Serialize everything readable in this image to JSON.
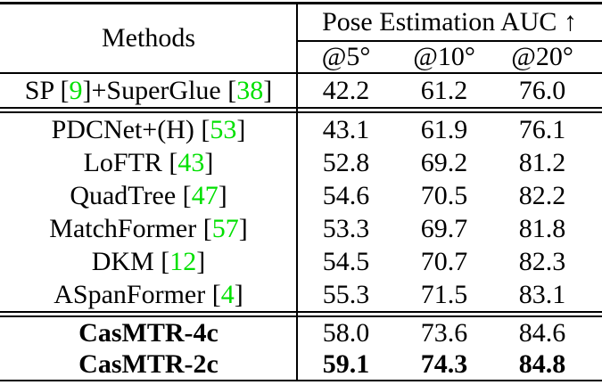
{
  "colors": {
    "text": "#000000",
    "citation": "#00e000",
    "rule": "#000000",
    "background": "#ffffff"
  },
  "table": {
    "title_column": "Methods",
    "group_header": "Pose Estimation AUC ↑",
    "subcolumns": [
      "@5°",
      "@10°",
      "@20°"
    ],
    "row_groups": [
      {
        "rows": [
          {
            "method": [
              {
                "text": "SP [",
                "cite": false
              },
              {
                "text": "9",
                "cite": true
              },
              {
                "text": "]+SuperGlue [",
                "cite": false
              },
              {
                "text": "38",
                "cite": true
              },
              {
                "text": "]",
                "cite": false
              }
            ],
            "values": [
              "42.2",
              "61.2",
              "76.0"
            ],
            "bold_method": false,
            "bold_values": false
          }
        ]
      },
      {
        "rows": [
          {
            "method": [
              {
                "text": "PDCNet+(H) [",
                "cite": false
              },
              {
                "text": "53",
                "cite": true
              },
              {
                "text": "]",
                "cite": false
              }
            ],
            "values": [
              "43.1",
              "61.9",
              "76.1"
            ],
            "bold_method": false,
            "bold_values": false
          },
          {
            "method": [
              {
                "text": "LoFTR [",
                "cite": false
              },
              {
                "text": "43",
                "cite": true
              },
              {
                "text": "]",
                "cite": false
              }
            ],
            "values": [
              "52.8",
              "69.2",
              "81.2"
            ],
            "bold_method": false,
            "bold_values": false
          },
          {
            "method": [
              {
                "text": "QuadTree [",
                "cite": false
              },
              {
                "text": "47",
                "cite": true
              },
              {
                "text": "]",
                "cite": false
              }
            ],
            "values": [
              "54.6",
              "70.5",
              "82.2"
            ],
            "bold_method": false,
            "bold_values": false
          },
          {
            "method": [
              {
                "text": "MatchFormer [",
                "cite": false
              },
              {
                "text": "57",
                "cite": true
              },
              {
                "text": "]",
                "cite": false
              }
            ],
            "values": [
              "53.3",
              "69.7",
              "81.8"
            ],
            "bold_method": false,
            "bold_values": false
          },
          {
            "method": [
              {
                "text": "DKM [",
                "cite": false
              },
              {
                "text": "12",
                "cite": true
              },
              {
                "text": "]",
                "cite": false
              }
            ],
            "values": [
              "54.5",
              "70.7",
              "82.3"
            ],
            "bold_method": false,
            "bold_values": false
          },
          {
            "method": [
              {
                "text": "ASpanFormer [",
                "cite": false
              },
              {
                "text": "4",
                "cite": true
              },
              {
                "text": "]",
                "cite": false
              }
            ],
            "values": [
              "55.3",
              "71.5",
              "83.1"
            ],
            "bold_method": false,
            "bold_values": false
          }
        ]
      },
      {
        "rows": [
          {
            "method": [
              {
                "text": "CasMTR-4c",
                "cite": false
              }
            ],
            "values": [
              "58.0",
              "73.6",
              "84.6"
            ],
            "bold_method": true,
            "bold_values": false
          },
          {
            "method": [
              {
                "text": "CasMTR-2c",
                "cite": false
              }
            ],
            "values": [
              "59.1",
              "74.3",
              "84.8"
            ],
            "bold_method": true,
            "bold_values": true
          }
        ]
      }
    ]
  }
}
